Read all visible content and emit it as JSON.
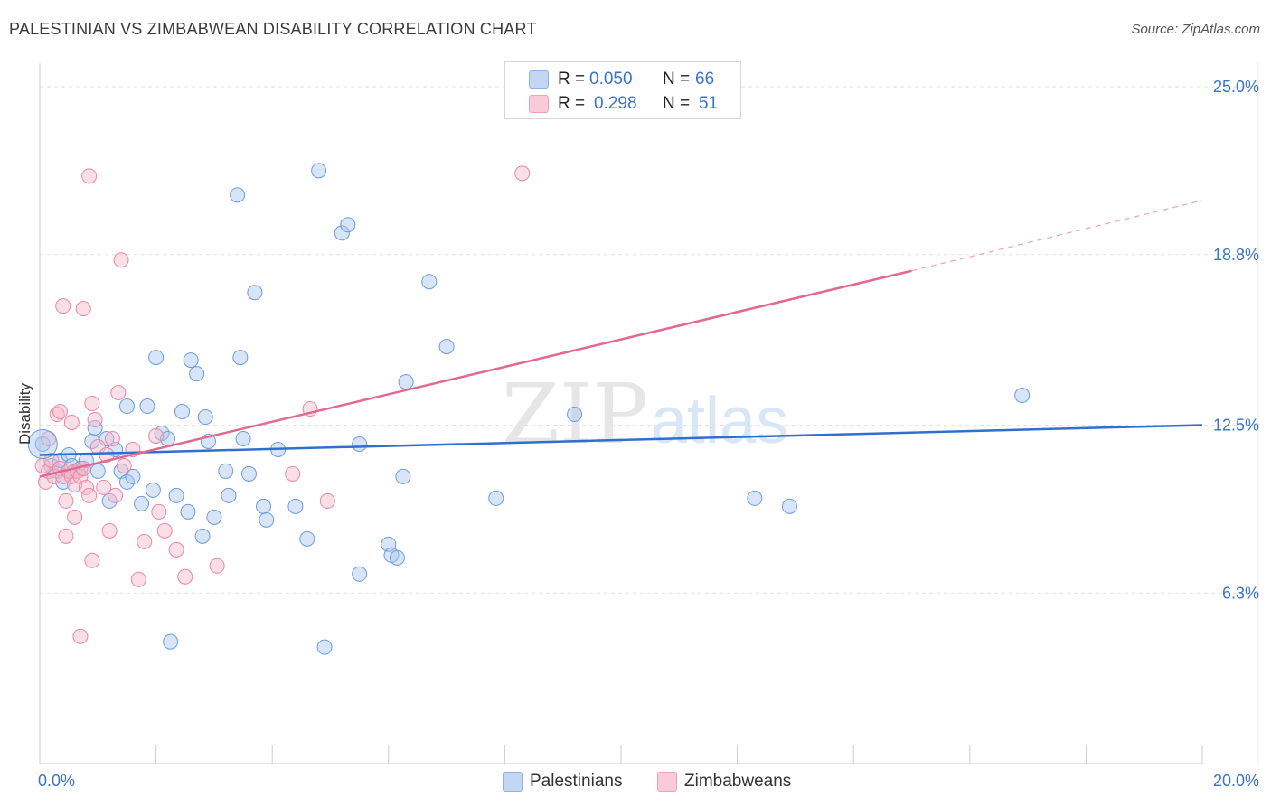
{
  "header": {
    "title": "PALESTINIAN VS ZIMBABWEAN DISABILITY CORRELATION CHART",
    "source": "Source: ZipAtlas.com"
  },
  "watermark": {
    "zip": "ZIP",
    "atlas": "atlas"
  },
  "legend": {
    "r_label": "R =",
    "n_label": "N =",
    "palestinians": {
      "r": "0.050",
      "n": "66",
      "color": "#a9c6ee",
      "stroke": "#6b9be0"
    },
    "zimbabweans": {
      "r": "0.298",
      "n": "51",
      "color": "#f6b8ca",
      "stroke": "#e987a6"
    }
  },
  "bottom_legend": {
    "palestinians": "Palestinians",
    "zimbabweans": "Zimbabweans"
  },
  "chart_data": {
    "type": "scatter",
    "title": "PALESTINIAN VS ZIMBABWEAN DISABILITY CORRELATION CHART",
    "xlabel": "",
    "ylabel": "Disability",
    "xlim": [
      0,
      20
    ],
    "ylim": [
      0,
      26
    ],
    "x_tick_labels": [
      "0.0%",
      "20.0%"
    ],
    "y_ticks": [
      6.3,
      12.5,
      18.8,
      25.0
    ],
    "y_tick_labels": [
      "6.3%",
      "12.5%",
      "18.8%",
      "25.0%"
    ],
    "grid": true,
    "series": [
      {
        "name": "Palestinians",
        "color": "#6b9be0",
        "trend": {
          "x": [
            0,
            20
          ],
          "y": [
            11.4,
            12.5
          ]
        },
        "points": [
          [
            0.05,
            11.8
          ],
          [
            0.2,
            11.0
          ],
          [
            0.3,
            10.8
          ],
          [
            0.35,
            11.2
          ],
          [
            0.4,
            10.4
          ],
          [
            0.5,
            11.4
          ],
          [
            0.55,
            11.0
          ],
          [
            0.6,
            10.8
          ],
          [
            0.7,
            10.9
          ],
          [
            0.8,
            11.2
          ],
          [
            0.9,
            11.9
          ],
          [
            0.95,
            12.4
          ],
          [
            1.0,
            10.8
          ],
          [
            1.15,
            12.0
          ],
          [
            1.2,
            9.7
          ],
          [
            1.3,
            11.6
          ],
          [
            1.4,
            10.8
          ],
          [
            1.5,
            10.4
          ],
          [
            1.5,
            13.2
          ],
          [
            1.6,
            10.6
          ],
          [
            1.75,
            9.6
          ],
          [
            1.85,
            13.2
          ],
          [
            1.95,
            10.1
          ],
          [
            2.0,
            15.0
          ],
          [
            2.1,
            12.2
          ],
          [
            2.2,
            12.0
          ],
          [
            2.25,
            4.5
          ],
          [
            2.35,
            9.9
          ],
          [
            2.45,
            13.0
          ],
          [
            2.55,
            9.3
          ],
          [
            2.6,
            14.9
          ],
          [
            2.7,
            14.4
          ],
          [
            2.8,
            8.4
          ],
          [
            2.85,
            12.8
          ],
          [
            2.9,
            11.9
          ],
          [
            3.0,
            9.1
          ],
          [
            3.2,
            10.8
          ],
          [
            3.25,
            9.9
          ],
          [
            3.4,
            21.0
          ],
          [
            3.45,
            15.0
          ],
          [
            3.5,
            12.0
          ],
          [
            3.6,
            10.7
          ],
          [
            3.7,
            17.4
          ],
          [
            3.85,
            9.5
          ],
          [
            3.9,
            9.0
          ],
          [
            4.1,
            11.6
          ],
          [
            4.4,
            9.5
          ],
          [
            4.6,
            8.3
          ],
          [
            4.8,
            21.9
          ],
          [
            4.9,
            4.3
          ],
          [
            5.2,
            19.6
          ],
          [
            5.3,
            19.9
          ],
          [
            5.5,
            11.8
          ],
          [
            5.5,
            7.0
          ],
          [
            6.0,
            8.1
          ],
          [
            6.05,
            7.7
          ],
          [
            6.15,
            7.6
          ],
          [
            6.25,
            10.6
          ],
          [
            6.3,
            14.1
          ],
          [
            6.7,
            17.8
          ],
          [
            7.0,
            15.4
          ],
          [
            7.85,
            9.8
          ],
          [
            9.2,
            12.9
          ],
          [
            12.3,
            9.8
          ],
          [
            12.9,
            9.5
          ],
          [
            16.9,
            13.6
          ]
        ]
      },
      {
        "name": "Zimbabweans",
        "color": "#e987a6",
        "trend": {
          "x": [
            0,
            15
          ],
          "y": [
            10.6,
            18.2
          ]
        },
        "trend_dashed": {
          "x": [
            15,
            20
          ],
          "y": [
            18.2,
            20.8
          ]
        },
        "points": [
          [
            0.05,
            11.0
          ],
          [
            0.1,
            10.4
          ],
          [
            0.15,
            10.8
          ],
          [
            0.2,
            11.2
          ],
          [
            0.25,
            10.6
          ],
          [
            0.3,
            12.9
          ],
          [
            0.35,
            10.9
          ],
          [
            0.35,
            13.0
          ],
          [
            0.4,
            10.6
          ],
          [
            0.4,
            16.9
          ],
          [
            0.45,
            8.4
          ],
          [
            0.45,
            9.7
          ],
          [
            0.5,
            10.8
          ],
          [
            0.55,
            10.6
          ],
          [
            0.55,
            12.6
          ],
          [
            0.6,
            9.1
          ],
          [
            0.6,
            10.3
          ],
          [
            0.65,
            10.8
          ],
          [
            0.7,
            10.6
          ],
          [
            0.7,
            4.7
          ],
          [
            0.75,
            16.8
          ],
          [
            0.75,
            10.9
          ],
          [
            0.8,
            10.2
          ],
          [
            0.85,
            21.7
          ],
          [
            0.85,
            9.9
          ],
          [
            0.9,
            7.5
          ],
          [
            0.9,
            13.3
          ],
          [
            0.95,
            12.7
          ],
          [
            1.0,
            11.7
          ],
          [
            1.1,
            10.2
          ],
          [
            1.15,
            11.4
          ],
          [
            1.2,
            8.6
          ],
          [
            1.25,
            12.0
          ],
          [
            1.3,
            9.9
          ],
          [
            1.35,
            13.7
          ],
          [
            1.4,
            18.6
          ],
          [
            1.6,
            11.6
          ],
          [
            1.7,
            6.8
          ],
          [
            1.8,
            8.2
          ],
          [
            2.0,
            12.1
          ],
          [
            2.05,
            9.3
          ],
          [
            2.15,
            8.6
          ],
          [
            2.35,
            7.9
          ],
          [
            2.5,
            6.9
          ],
          [
            3.05,
            7.3
          ],
          [
            4.35,
            10.7
          ],
          [
            4.65,
            13.1
          ],
          [
            4.95,
            9.7
          ],
          [
            8.3,
            21.8
          ],
          [
            0.15,
            12.0
          ],
          [
            1.45,
            11.0
          ]
        ]
      }
    ]
  }
}
